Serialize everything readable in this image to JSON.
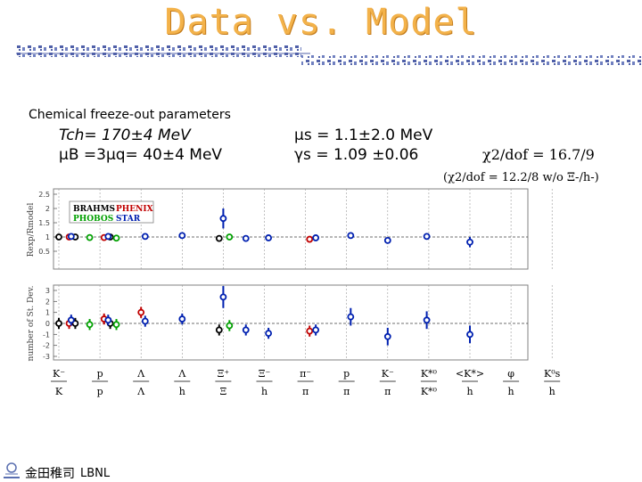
{
  "page": {
    "title": "Data vs. Model",
    "subtitle": "Chemical freeze-out parameters",
    "tch": "Tch= 170±4 MeV",
    "mub": "μB =3μq= 40±4 MeV",
    "mus": "μs  = 1.1±2.0 MeV",
    "gammas": "γs  = 1.09 ±0.06",
    "chi2": "χ2/dof = 16.7/9",
    "chi2_alt": "(χ2/dof = 12.2/8  w/o Ξ-/h-)",
    "footer_text": "LBNL",
    "footer_cjk": "金田稚司"
  },
  "colors": {
    "title": "#f3b24a",
    "band": "#5060a8",
    "BRAHMS": "#000000",
    "PHENIX": "#c00000",
    "PHOBOS": "#00a000",
    "STAR": "#0020b0"
  },
  "chart_data": [
    {
      "type": "scatter",
      "ylabel": "Rexp/Rmodel",
      "ylim": [
        0,
        2.5
      ],
      "yticks": [
        "2.5",
        "2",
        "1.5",
        "1",
        "0.5"
      ],
      "legend": [
        "BRAHMS",
        "PHENIX",
        "PHOBOS",
        "STAR"
      ],
      "legend_position": "top-left",
      "series": [
        {
          "name": "BRAHMS",
          "points": [
            {
              "i": 0,
              "y": 1.0,
              "e": 0.05
            },
            {
              "i": 0.4,
              "y": 1.0,
              "e": 0.05
            },
            {
              "i": 1.25,
              "y": 1.0,
              "e": 0.05
            },
            {
              "i": 3.9,
              "y": 0.95,
              "e": 0.05
            }
          ]
        },
        {
          "name": "PHENIX",
          "points": [
            {
              "i": 0.25,
              "y": 1.0,
              "e": 0.05
            },
            {
              "i": 1.1,
              "y": 0.98,
              "e": 0.05
            },
            {
              "i": 6.1,
              "y": 0.92,
              "e": 0.05
            }
          ]
        },
        {
          "name": "PHOBOS",
          "points": [
            {
              "i": 0.75,
              "y": 0.98,
              "e": 0.05
            },
            {
              "i": 1.4,
              "y": 0.96,
              "e": 0.05
            },
            {
              "i": 4.15,
              "y": 1.0,
              "e": 0.05
            }
          ]
        },
        {
          "name": "STAR",
          "points": [
            {
              "i": 0.3,
              "y": 1.02,
              "e": 0.05
            },
            {
              "i": 1.2,
              "y": 1.02,
              "e": 0.05
            },
            {
              "i": 2.1,
              "y": 1.02,
              "e": 0.1
            },
            {
              "i": 3.0,
              "y": 1.05,
              "e": 0.1
            },
            {
              "i": 4.0,
              "y": 1.65,
              "e": 0.35
            },
            {
              "i": 4.55,
              "y": 0.95,
              "e": 0.05
            },
            {
              "i": 5.1,
              "y": 0.97,
              "e": 0.05
            },
            {
              "i": 6.25,
              "y": 0.97,
              "e": 0.05
            },
            {
              "i": 7.1,
              "y": 1.05,
              "e": 0.08
            },
            {
              "i": 8.0,
              "y": 0.88,
              "e": 0.1
            },
            {
              "i": 8.95,
              "y": 1.02,
              "e": 0.1
            },
            {
              "i": 10.0,
              "y": 0.82,
              "e": 0.18
            }
          ]
        }
      ]
    },
    {
      "type": "scatter",
      "ylabel": "number of St. Dev.",
      "ylim": [
        -3,
        3
      ],
      "yticks": [
        "3",
        "2",
        "1",
        "0",
        "-1",
        "-2",
        "-3"
      ],
      "series": [
        {
          "name": "BRAHMS",
          "points": [
            {
              "i": 0,
              "y": 0.0,
              "e": 0.5
            },
            {
              "i": 0.4,
              "y": 0.0,
              "e": 0.5
            },
            {
              "i": 1.25,
              "y": 0.0,
              "e": 0.5
            },
            {
              "i": 3.9,
              "y": -0.6,
              "e": 0.5
            }
          ]
        },
        {
          "name": "PHENIX",
          "points": [
            {
              "i": 0.25,
              "y": 0.0,
              "e": 0.5
            },
            {
              "i": 1.1,
              "y": 0.4,
              "e": 0.5
            },
            {
              "i": 2.0,
              "y": 1.0,
              "e": 0.5
            },
            {
              "i": 6.1,
              "y": -0.7,
              "e": 0.5
            }
          ]
        },
        {
          "name": "PHOBOS",
          "points": [
            {
              "i": 0.75,
              "y": -0.1,
              "e": 0.5
            },
            {
              "i": 1.4,
              "y": -0.1,
              "e": 0.5
            },
            {
              "i": 4.15,
              "y": -0.2,
              "e": 0.5
            }
          ]
        },
        {
          "name": "STAR",
          "points": [
            {
              "i": 0.3,
              "y": 0.3,
              "e": 0.5
            },
            {
              "i": 1.2,
              "y": 0.3,
              "e": 0.5
            },
            {
              "i": 2.1,
              "y": 0.2,
              "e": 0.5
            },
            {
              "i": 3.0,
              "y": 0.4,
              "e": 0.5
            },
            {
              "i": 4.0,
              "y": 2.4,
              "e": 1.0
            },
            {
              "i": 4.55,
              "y": -0.6,
              "e": 0.5
            },
            {
              "i": 5.1,
              "y": -0.9,
              "e": 0.5
            },
            {
              "i": 6.25,
              "y": -0.6,
              "e": 0.5
            },
            {
              "i": 7.1,
              "y": 0.6,
              "e": 0.8
            },
            {
              "i": 8.0,
              "y": -1.2,
              "e": 0.8
            },
            {
              "i": 8.95,
              "y": 0.3,
              "e": 0.8
            },
            {
              "i": 10.0,
              "y": -1.0,
              "e": 0.8
            }
          ]
        }
      ]
    }
  ],
  "xlabels": [
    {
      "top": "K⁻",
      "bottom": "K"
    },
    {
      "top": "p",
      "bottom": "p"
    },
    {
      "top": "Λ",
      "bottom": "Λ"
    },
    {
      "top": "Λ",
      "bottom": "h"
    },
    {
      "top": "Ξ⁺",
      "bottom": "Ξ"
    },
    {
      "top": "Ξ⁻",
      "bottom": "h"
    },
    {
      "top": "π⁻",
      "bottom": "π"
    },
    {
      "top": "p",
      "bottom": "π"
    },
    {
      "top": "K⁻",
      "bottom": "π"
    },
    {
      "top": "K*⁰",
      "bottom": "K*⁰"
    },
    {
      "top": "<K*>",
      "bottom": "h"
    },
    {
      "top": "φ",
      "bottom": "h"
    },
    {
      "top": "K⁰s",
      "bottom": "h"
    }
  ]
}
